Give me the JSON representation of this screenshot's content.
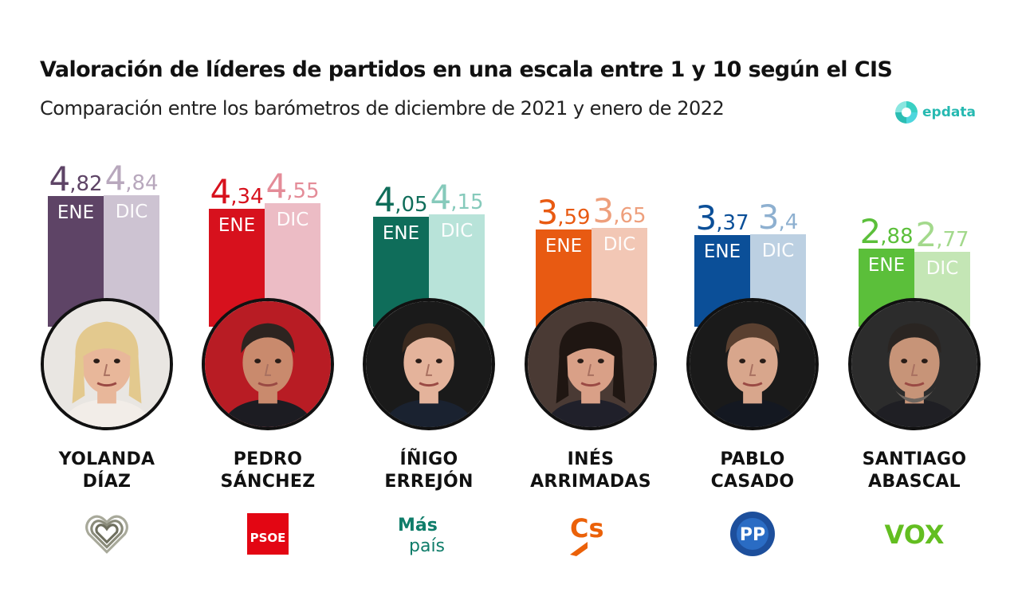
{
  "title": "Valoración de líderes de partidos en una escala entre 1 y 10 según el CIS",
  "subtitle": "Comparación entre los barómetros de diciembre de 2021 y enero de 2022",
  "brand": {
    "name": "epdata",
    "color": "#26b9b1"
  },
  "chart_data": {
    "type": "bar",
    "series": [
      {
        "name": "ENE",
        "values": [
          4.82,
          4.34,
          4.05,
          3.59,
          3.37,
          2.88
        ]
      },
      {
        "name": "DIC",
        "values": [
          4.84,
          4.55,
          4.15,
          3.65,
          3.4,
          2.77
        ]
      }
    ],
    "value_labels": {
      "ENE": [
        [
          "4",
          ",82"
        ],
        [
          "4",
          ",34"
        ],
        [
          "4",
          ",05"
        ],
        [
          "3",
          ",59"
        ],
        [
          "3",
          ",37"
        ],
        [
          "2",
          ",88"
        ]
      ],
      "DIC": [
        [
          "4",
          ",84"
        ],
        [
          "4",
          ",55"
        ],
        [
          "4",
          ",15"
        ],
        [
          "3",
          ",65"
        ],
        [
          "3",
          ",4"
        ],
        [
          "2",
          ",77"
        ]
      ]
    },
    "ylim": [
      0,
      10
    ],
    "leaders": [
      {
        "line1": "YOLANDA",
        "line2": "DÍAZ",
        "party": "Sumar",
        "logo": "heart-logo",
        "color_jan": "#5e4466",
        "color_dec": "#cdc3d2",
        "label_jan": "#5e4466",
        "label_dec": "#b8a8bd"
      },
      {
        "line1": "PEDRO",
        "line2": "SÁNCHEZ",
        "party": "PSOE",
        "logo_text": "PSOE",
        "logo": "psoe-logo",
        "color_jan": "#d7111d",
        "color_dec": "#ecbcc5",
        "label_jan": "#d7111d",
        "label_dec": "#e48c98"
      },
      {
        "line1": "ÍÑIGO",
        "line2": "ERREJÓN",
        "party": "Más País",
        "logo_text_1": "Más",
        "logo_text_2": "país",
        "logo": "mas-pais-logo",
        "color_jan": "#0f6d5a",
        "color_dec": "#b8e3d9",
        "label_jan": "#0f6d5a",
        "label_dec": "#86cabb"
      },
      {
        "line1": "INÉS",
        "line2": "ARRIMADAS",
        "party": "Cs",
        "logo_text": "Cs",
        "logo": "cs-logo",
        "color_jan": "#e85a12",
        "color_dec": "#f2c7b5",
        "label_jan": "#e85a12",
        "label_dec": "#ee9f7c"
      },
      {
        "line1": "PABLO",
        "line2": "CASADO",
        "party": "PP",
        "logo_text": "PP",
        "logo": "pp-logo",
        "color_jan": "#0b4f98",
        "color_dec": "#bcd0e2",
        "label_jan": "#0b4f98",
        "label_dec": "#8eb0d0"
      },
      {
        "line1": "SANTIAGO",
        "line2": "ABASCAL",
        "party": "VOX",
        "logo_text": "VOX",
        "logo": "vox-logo",
        "color_jan": "#5bbf3a",
        "color_dec": "#c4e6b5",
        "label_jan": "#5bbf3a",
        "label_dec": "#a3d98c"
      }
    ]
  }
}
